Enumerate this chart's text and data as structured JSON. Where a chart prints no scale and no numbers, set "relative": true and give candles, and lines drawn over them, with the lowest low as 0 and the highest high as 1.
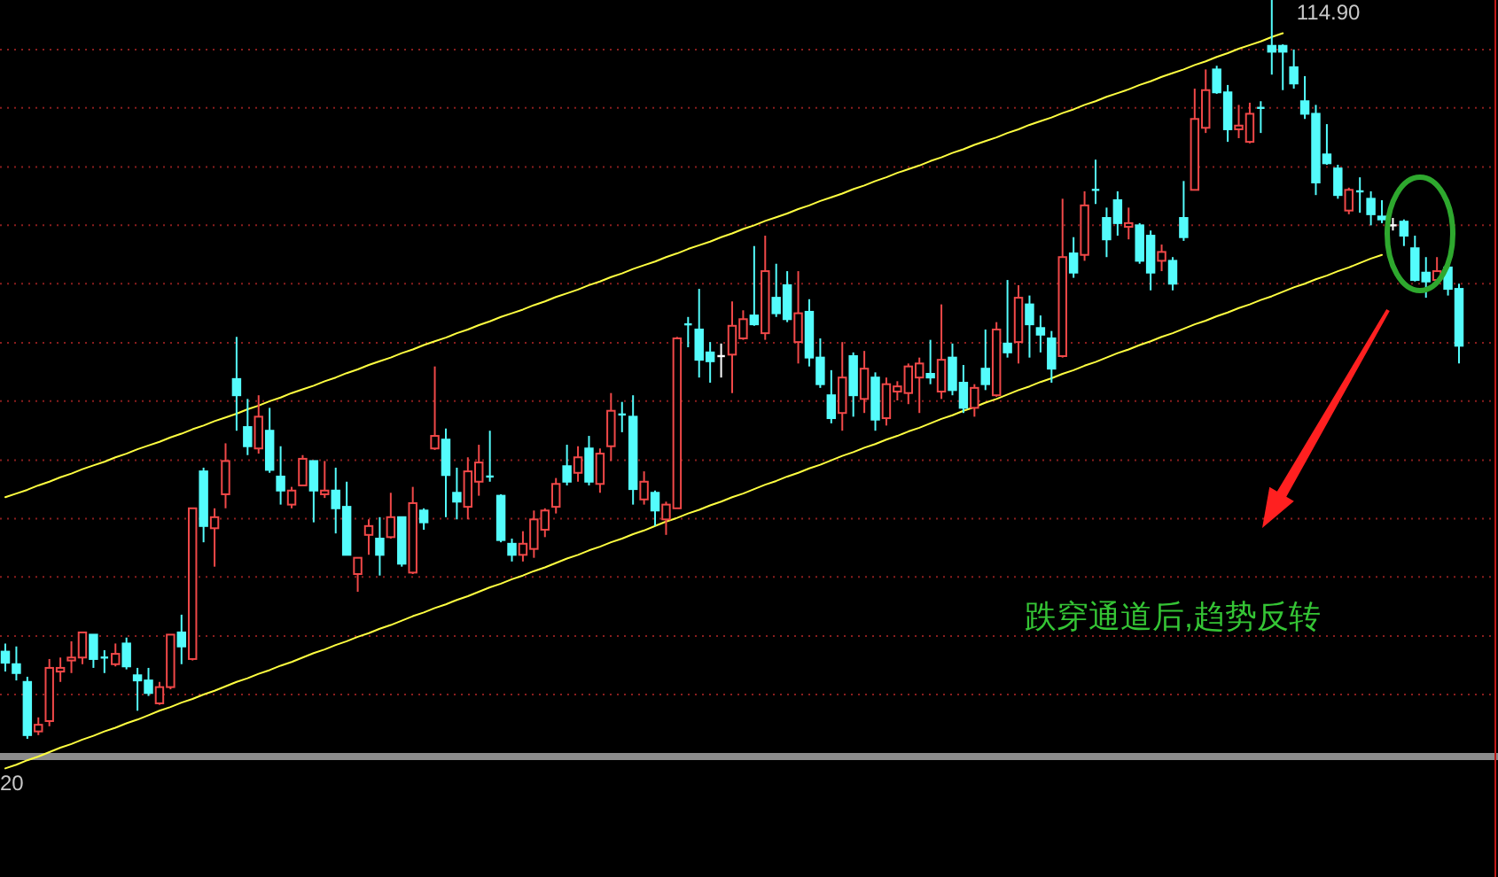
{
  "chart_data": {
    "type": "candlestick",
    "relative": true,
    "categories": [
      null,
      null,
      null,
      null,
      null,
      null,
      null,
      null,
      null,
      null,
      null,
      null,
      null,
      null,
      null,
      null,
      null,
      null,
      null,
      null,
      null,
      null,
      null,
      null,
      null,
      null,
      null,
      null,
      null,
      null,
      null,
      null,
      null,
      null,
      null,
      null,
      null,
      null,
      null,
      null,
      null,
      null,
      null,
      null,
      null,
      null,
      null,
      null,
      null,
      null,
      null,
      null,
      null,
      null,
      null,
      null,
      null,
      null,
      null,
      null,
      null,
      null,
      null,
      null,
      null,
      null,
      null,
      null,
      null,
      null,
      null,
      null,
      null,
      null,
      null,
      null,
      null,
      null,
      null,
      null,
      null,
      null,
      null,
      null,
      null,
      null,
      null,
      null,
      null,
      null,
      null,
      null,
      null,
      null,
      null,
      null,
      null,
      null,
      null,
      null,
      null,
      null,
      null,
      null,
      null,
      null,
      null,
      null,
      null,
      null,
      null,
      null,
      null,
      null,
      null,
      null,
      null,
      null,
      null,
      null,
      null,
      null,
      null,
      null,
      null,
      null,
      null,
      null,
      null,
      null,
      null,
      null,
      null
    ],
    "ohlc": [
      [
        0.118,
        0.129,
        0.091,
        0.103
      ],
      [
        0.101,
        0.125,
        0.079,
        0.089
      ],
      [
        0.077,
        0.084,
        0,
        0.005
      ],
      [
        0.01,
        0.029,
        0.005,
        0.019
      ],
      [
        0.024,
        0.108,
        0.017,
        0.096
      ],
      [
        0.091,
        0.11,
        0.077,
        0.096
      ],
      [
        0.106,
        0.132,
        0.089,
        0.11
      ],
      [
        0.11,
        0.144,
        0.101,
        0.144
      ],
      [
        0.141,
        0.141,
        0.096,
        0.108
      ],
      [
        0.11,
        0.12,
        0.089,
        0.11
      ],
      [
        0.101,
        0.129,
        0.098,
        0.115
      ],
      [
        0.129,
        0.137,
        0.094,
        0.098
      ],
      [
        0.086,
        0.096,
        0.038,
        0.079
      ],
      [
        0.079,
        0.096,
        0.058,
        0.062
      ],
      [
        0.048,
        0.077,
        0.046,
        0.07
      ],
      [
        0.07,
        0.141,
        0.067,
        0.141
      ],
      [
        0.144,
        0.168,
        0.101,
        0.125
      ],
      [
        0.108,
        0.312,
        0.106,
        0.312
      ],
      [
        0.362,
        0.367,
        0.266,
        0.288
      ],
      [
        0.285,
        0.312,
        0.233,
        0.3
      ],
      [
        0.331,
        0.4,
        0.312,
        0.376
      ],
      [
        0.487,
        0.544,
        0.417,
        0.465
      ],
      [
        0.422,
        0.46,
        0.384,
        0.396
      ],
      [
        0.393,
        0.465,
        0.386,
        0.436
      ],
      [
        0.417,
        0.448,
        0.36,
        0.364
      ],
      [
        0.355,
        0.396,
        0.317,
        0.336
      ],
      [
        0.317,
        0.341,
        0.312,
        0.336
      ],
      [
        0.343,
        0.384,
        0.343,
        0.379
      ],
      [
        0.376,
        0.376,
        0.293,
        0.336
      ],
      [
        0.331,
        0.376,
        0.326,
        0.336
      ],
      [
        0.336,
        0.367,
        0.278,
        0.312
      ],
      [
        0.314,
        0.348,
        0.249,
        0.249
      ],
      [
        0.223,
        0.245,
        0.199,
        0.245
      ],
      [
        0.276,
        0.297,
        0.249,
        0.288
      ],
      [
        0.271,
        0.3,
        0.221,
        0.249
      ],
      [
        0.273,
        0.333,
        0.271,
        0.3
      ],
      [
        0.3,
        0.3,
        0.233,
        0.237
      ],
      [
        0.225,
        0.341,
        0.223,
        0.319
      ],
      [
        0.309,
        0.312,
        0.283,
        0.293
      ],
      [
        0.393,
        0.504,
        0.391,
        0.41
      ],
      [
        0.405,
        0.42,
        0.3,
        0.357
      ],
      [
        0.333,
        0.367,
        0.297,
        0.321
      ],
      [
        0.314,
        0.381,
        0.297,
        0.362
      ],
      [
        0.348,
        0.398,
        0.329,
        0.374
      ],
      [
        0.355,
        0.417,
        0.348,
        0.355
      ],
      [
        0.329,
        0.331,
        0.266,
        0.269
      ],
      [
        0.264,
        0.271,
        0.24,
        0.249
      ],
      [
        0.249,
        0.281,
        0.24,
        0.264
      ],
      [
        0.257,
        0.309,
        0.245,
        0.297
      ],
      [
        0.283,
        0.312,
        0.273,
        0.309
      ],
      [
        0.314,
        0.353,
        0.305,
        0.345
      ],
      [
        0.369,
        0.398,
        0.343,
        0.348
      ],
      [
        0.36,
        0.396,
        0.348,
        0.381
      ],
      [
        0.393,
        0.41,
        0.343,
        0.348
      ],
      [
        0.345,
        0.393,
        0.333,
        0.386
      ],
      [
        0.396,
        0.468,
        0.376,
        0.444
      ],
      [
        0.439,
        0.456,
        0.415,
        0.439
      ],
      [
        0.436,
        0.465,
        0.317,
        0.338
      ],
      [
        0.324,
        0.362,
        0.317,
        0.348
      ],
      [
        0.333,
        0.336,
        0.288,
        0.309
      ],
      [
        0.297,
        0.321,
        0.276,
        0.317
      ],
      [
        0.312,
        0.544,
        0.312,
        0.542
      ],
      [
        0.561,
        0.571,
        0.53,
        0.561
      ],
      [
        0.554,
        0.609,
        0.489,
        0.513
      ],
      [
        0.523,
        0.537,
        0.482,
        0.511
      ],
      [
        0.518,
        0.535,
        0.489,
        0.518
      ],
      [
        0.52,
        0.592,
        0.468,
        0.559
      ],
      [
        0.542,
        0.58,
        0.54,
        0.568
      ],
      [
        0.573,
        0.667,
        0.559,
        0.561
      ],
      [
        0.549,
        0.681,
        0.54,
        0.633
      ],
      [
        0.597,
        0.643,
        0.571,
        0.576
      ],
      [
        0.614,
        0.633,
        0.564,
        0.568
      ],
      [
        0.537,
        0.633,
        0.508,
        0.576
      ],
      [
        0.578,
        0.595,
        0.504,
        0.516
      ],
      [
        0.516,
        0.542,
        0.475,
        0.48
      ],
      [
        0.465,
        0.499,
        0.427,
        0.434
      ],
      [
        0.441,
        0.537,
        0.417,
        0.489
      ],
      [
        0.518,
        0.523,
        0.436,
        0.465
      ],
      [
        0.46,
        0.525,
        0.441,
        0.501
      ],
      [
        0.489,
        0.496,
        0.417,
        0.432
      ],
      [
        0.434,
        0.489,
        0.424,
        0.48
      ],
      [
        0.47,
        0.484,
        0.458,
        0.477
      ],
      [
        0.468,
        0.508,
        0.453,
        0.504
      ],
      [
        0.489,
        0.516,
        0.441,
        0.508
      ],
      [
        0.494,
        0.54,
        0.48,
        0.489
      ],
      [
        0.47,
        0.588,
        0.46,
        0.513
      ],
      [
        0.516,
        0.535,
        0.465,
        0.472
      ],
      [
        0.482,
        0.506,
        0.441,
        0.448
      ],
      [
        0.448,
        0.48,
        0.436,
        0.475
      ],
      [
        0.501,
        0.554,
        0.472,
        0.48
      ],
      [
        0.465,
        0.564,
        0.463,
        0.554
      ],
      [
        0.535,
        0.621,
        0.516,
        0.523
      ],
      [
        0.537,
        0.614,
        0.508,
        0.597
      ],
      [
        0.588,
        0.6,
        0.516,
        0.561
      ],
      [
        0.556,
        0.573,
        0.523,
        0.547
      ],
      [
        0.542,
        0.552,
        0.482,
        0.501
      ],
      [
        0.518,
        0.731,
        0.516,
        0.652
      ],
      [
        0.657,
        0.679,
        0.624,
        0.631
      ],
      [
        0.655,
        0.741,
        0.647,
        0.722
      ],
      [
        0.743,
        0.784,
        0.724,
        0.743
      ],
      [
        0.705,
        0.719,
        0.652,
        0.676
      ],
      [
        0.729,
        0.741,
        0.681,
        0.698
      ],
      [
        0.693,
        0.719,
        0.676,
        0.698
      ],
      [
        0.695,
        0.698,
        0.643,
        0.647
      ],
      [
        0.681,
        0.688,
        0.607,
        0.631
      ],
      [
        0.647,
        0.669,
        0.633,
        0.659
      ],
      [
        0.647,
        0.652,
        0.607,
        0.616
      ],
      [
        0.705,
        0.755,
        0.674,
        0.679
      ],
      [
        0.743,
        0.88,
        0.743,
        0.839
      ],
      [
        0.827,
        0.906,
        0.82,
        0.878
      ],
      [
        0.906,
        0.911,
        0.873,
        0.875
      ],
      [
        0.875,
        0.885,
        0.808,
        0.825
      ],
      [
        0.825,
        0.858,
        0.813,
        0.83
      ],
      [
        0.808,
        0.861,
        0.806,
        0.846
      ],
      [
        0.854,
        0.863,
        0.82,
        0.854
      ],
      [
        0.938,
        1,
        0.899,
        0.93
      ],
      [
        0.938,
        0.94,
        0.878,
        0.93
      ],
      [
        0.909,
        0.933,
        0.88,
        0.887
      ],
      [
        0.863,
        0.897,
        0.839,
        0.846
      ],
      [
        0.846,
        0.858,
        0.736,
        0.753
      ],
      [
        0.791,
        0.832,
        0.777,
        0.779
      ],
      [
        0.772,
        0.777,
        0.731,
        0.736
      ],
      [
        0.715,
        0.746,
        0.71,
        0.743
      ],
      [
        0.741,
        0.76,
        0.712,
        0.741
      ],
      [
        0.731,
        0.741,
        0.695,
        0.71
      ],
      [
        0.707,
        0.729,
        0.698,
        0.703
      ],
      [
        0.695,
        0.705,
        0.688,
        0.695
      ],
      [
        0.7,
        0.703,
        0.667,
        0.681
      ],
      [
        0.664,
        0.681,
        0.619,
        0.621
      ],
      [
        0.631,
        0.652,
        0.597,
        0.619
      ],
      [
        0.621,
        0.652,
        0.614,
        0.633
      ],
      [
        0.638,
        0.643,
        0.6,
        0.609
      ],
      [
        0.609,
        0.616,
        0.508,
        0.532
      ]
    ],
    "colors": [
      "#54fcfc",
      "#54fcfc",
      "#54fcfc",
      "#f04848",
      "#f04848",
      "#f04848",
      "#f04848",
      "#f04848",
      "#54fcfc",
      "#54fcfc",
      "#f04848",
      "#54fcfc",
      "#54fcfc",
      "#54fcfc",
      "#f04848",
      "#f04848",
      "#54fcfc",
      "#f04848",
      "#54fcfc",
      "#f04848",
      "#f04848",
      "#54fcfc",
      "#54fcfc",
      "#f04848",
      "#54fcfc",
      "#54fcfc",
      "#f04848",
      "#f04848",
      "#54fcfc",
      "#f04848",
      "#54fcfc",
      "#54fcfc",
      "#f04848",
      "#f04848",
      "#54fcfc",
      "#f04848",
      "#54fcfc",
      "#f04848",
      "#54fcfc",
      "#f04848",
      "#54fcfc",
      "#54fcfc",
      "#f04848",
      "#f04848",
      "#54fcfc",
      "#54fcfc",
      "#54fcfc",
      "#f04848",
      "#f04848",
      "#f04848",
      "#f04848",
      "#54fcfc",
      "#f04848",
      "#54fcfc",
      "#f04848",
      "#f04848",
      "#54fcfc",
      "#54fcfc",
      "#f04848",
      "#54fcfc",
      "#f04848",
      "#f04848",
      "#54fcfc",
      "#54fcfc",
      "#54fcfc",
      "#ffffff",
      "#f04848",
      "#f04848",
      "#54fcfc",
      "#f04848",
      "#54fcfc",
      "#54fcfc",
      "#f04848",
      "#54fcfc",
      "#54fcfc",
      "#54fcfc",
      "#f04848",
      "#54fcfc",
      "#f04848",
      "#54fcfc",
      "#f04848",
      "#f04848",
      "#f04848",
      "#f04848",
      "#54fcfc",
      "#f04848",
      "#54fcfc",
      "#54fcfc",
      "#f04848",
      "#54fcfc",
      "#f04848",
      "#54fcfc",
      "#f04848",
      "#54fcfc",
      "#54fcfc",
      "#54fcfc",
      "#f04848",
      "#54fcfc",
      "#f04848",
      "#54fcfc",
      "#54fcfc",
      "#54fcfc",
      "#f04848",
      "#54fcfc",
      "#54fcfc",
      "#f04848",
      "#54fcfc",
      "#54fcfc",
      "#f04848",
      "#f04848",
      "#54fcfc",
      "#54fcfc",
      "#f04848",
      "#f04848",
      "#54fcfc",
      "#54fcfc",
      "#54fcfc",
      "#54fcfc",
      "#54fcfc",
      "#54fcfc",
      "#54fcfc",
      "#54fcfc",
      "#f04848",
      "#54fcfc",
      "#54fcfc",
      "#54fcfc",
      "#ffffff",
      "#54fcfc",
      "#54fcfc",
      "#54fcfc",
      "#f04848",
      "#54fcfc",
      "#54fcfc"
    ],
    "series": [
      {
        "type": "line",
        "color": "#ffff40",
        "values": [
          0.327,
          0.332,
          0.337,
          0.343,
          0.348,
          0.354,
          0.359,
          0.365,
          0.37,
          0.375,
          0.381,
          0.386,
          0.392,
          0.397,
          0.402,
          0.408,
          0.413,
          0.419,
          0.424,
          0.43,
          0.435,
          0.44,
          0.446,
          0.451,
          0.457,
          0.462,
          0.468,
          0.473,
          0.478,
          0.484,
          0.489,
          0.495,
          0.5,
          0.506,
          0.511,
          0.516,
          0.522,
          0.527,
          0.533,
          0.538,
          0.543,
          0.549,
          0.554,
          0.56,
          0.565,
          0.571,
          0.576,
          0.581,
          0.587,
          0.592,
          0.598,
          0.603,
          0.608,
          0.614,
          0.619,
          0.625,
          0.63,
          0.636,
          0.641,
          0.646,
          0.652,
          0.657,
          0.663,
          0.668,
          0.673,
          0.679,
          0.684,
          0.69,
          0.695,
          0.701,
          0.706,
          0.711,
          0.717,
          0.722,
          0.728,
          0.733,
          0.738,
          0.744,
          0.749,
          0.755,
          0.76,
          0.766,
          0.771,
          0.776,
          0.782,
          0.787,
          0.793,
          0.798,
          0.804,
          0.809,
          0.814,
          0.82,
          0.825,
          0.831,
          0.836,
          0.841,
          0.847,
          0.852,
          0.858,
          0.863,
          0.869,
          0.874,
          0.879,
          0.885,
          0.89,
          0.896,
          0.901,
          0.906,
          0.912,
          0.917,
          0.923,
          0.928,
          0.934,
          0.939,
          0.944,
          0.95,
          0.955,
          null,
          null,
          null,
          null,
          null,
          null,
          null,
          null,
          null,
          null,
          null,
          null,
          null,
          null,
          null,
          null
        ]
      },
      {
        "type": "line",
        "color": "#ffff40",
        "values": [
          -0.04,
          -0.035,
          -0.029,
          -0.024,
          -0.018,
          -0.012,
          -0.007,
          -0.001,
          0.004,
          0.01,
          0.015,
          0.021,
          0.026,
          0.032,
          0.038,
          0.043,
          0.049,
          0.054,
          0.06,
          0.065,
          0.071,
          0.077,
          0.082,
          0.088,
          0.093,
          0.099,
          0.104,
          0.11,
          0.116,
          0.121,
          0.127,
          0.132,
          0.138,
          0.143,
          0.149,
          0.154,
          0.16,
          0.166,
          0.171,
          0.177,
          0.182,
          0.188,
          0.193,
          0.199,
          0.205,
          0.21,
          0.216,
          0.221,
          0.227,
          0.232,
          0.238,
          0.244,
          0.249,
          0.255,
          0.26,
          0.266,
          0.271,
          0.277,
          0.282,
          0.288,
          0.294,
          0.299,
          0.305,
          0.31,
          0.316,
          0.321,
          0.327,
          0.332,
          0.338,
          0.344,
          0.349,
          0.355,
          0.36,
          0.366,
          0.371,
          0.377,
          0.383,
          0.388,
          0.394,
          0.399,
          0.405,
          0.41,
          0.416,
          0.421,
          0.427,
          0.433,
          0.438,
          0.444,
          0.449,
          0.455,
          0.46,
          0.466,
          0.472,
          0.477,
          0.483,
          0.488,
          0.494,
          0.499,
          0.505,
          0.51,
          0.516,
          0.522,
          0.527,
          0.533,
          0.538,
          0.544,
          0.549,
          0.555,
          0.561,
          0.566,
          0.572,
          0.577,
          0.583,
          0.588,
          0.594,
          0.599,
          0.605,
          0.611,
          0.616,
          0.622,
          0.627,
          0.633,
          0.638,
          0.644,
          0.65,
          0.655,
          null,
          null,
          null,
          null,
          null,
          null,
          null
        ]
      }
    ],
    "ref_lines": [
      {
        "axis": "y",
        "value": 0.06,
        "color": "#8a1e1e",
        "line_style": "dotted"
      },
      {
        "axis": "y",
        "value": 0.139,
        "color": "#8a1e1e",
        "line_style": "dotted"
      },
      {
        "axis": "y",
        "value": 0.219,
        "color": "#8a1e1e",
        "line_style": "dotted"
      },
      {
        "axis": "y",
        "value": 0.298,
        "color": "#8a1e1e",
        "line_style": "dotted"
      },
      {
        "axis": "y",
        "value": 0.377,
        "color": "#8a1e1e",
        "line_style": "dotted"
      },
      {
        "axis": "y",
        "value": 0.457,
        "color": "#8a1e1e",
        "line_style": "dotted"
      },
      {
        "axis": "y",
        "value": 0.536,
        "color": "#8a1e1e",
        "line_style": "dotted"
      },
      {
        "axis": "y",
        "value": 0.616,
        "color": "#8a1e1e",
        "line_style": "dotted"
      },
      {
        "axis": "y",
        "value": 0.695,
        "color": "#8a1e1e",
        "line_style": "dotted"
      },
      {
        "axis": "y",
        "value": 0.774,
        "color": "#8a1e1e",
        "line_style": "dotted"
      },
      {
        "axis": "y",
        "value": 0.854,
        "color": "#8a1e1e",
        "line_style": "dotted"
      },
      {
        "axis": "y",
        "value": 0.933,
        "color": "#8a1e1e",
        "line_style": "dotted"
      }
    ],
    "annotations": [
      "跌穿通道后,趋势反转",
      "114.90",
      "20"
    ]
  }
}
